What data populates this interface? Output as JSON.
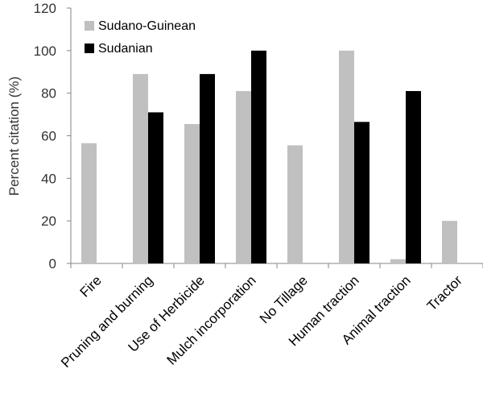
{
  "chart_data": {
    "type": "bar",
    "title": "",
    "xlabel": "",
    "ylabel": "Percent citation (%)",
    "ylim": [
      0,
      120
    ],
    "yticks": [
      0,
      20,
      40,
      60,
      80,
      100,
      120
    ],
    "grid": false,
    "legend_position": "top-left",
    "categories": [
      "Fire",
      "Pruning and burning",
      "Use of Herbicide",
      "Mulch incorporation",
      "No Tillage",
      "Human traction",
      "Animal traction",
      "Tractor"
    ],
    "series": [
      {
        "name": "Sudano-Guinean",
        "color": "#c0c0c0",
        "values": [
          56.5,
          89,
          65.5,
          81,
          55.5,
          100,
          2,
          20
        ]
      },
      {
        "name": "Sudanian",
        "color": "#000000",
        "values": [
          0,
          71,
          89,
          100,
          0,
          66.5,
          81,
          0
        ]
      }
    ]
  }
}
